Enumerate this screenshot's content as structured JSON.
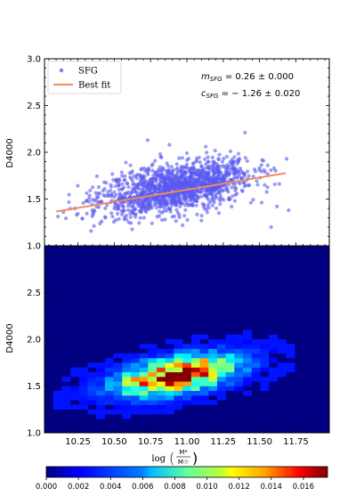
{
  "chart_data": [
    {
      "type": "scatter",
      "ylabel": "D4000",
      "xlim": [
        10.02,
        11.98
      ],
      "ylim": [
        1.0,
        3.0
      ],
      "yticks": [
        "1.0",
        "1.5",
        "2.0",
        "2.5",
        "3.0"
      ],
      "legend": {
        "placement": "top-left",
        "entries": [
          {
            "label": "SFG",
            "kind": "marker",
            "color": "#5a5af2"
          },
          {
            "label": "Best fit",
            "kind": "line",
            "color": "#f08a5d"
          }
        ]
      },
      "annotations": {
        "m_line": "m_{SFG} = 0.26 ± 0.000",
        "c_line": "c_{SFG} = −1.26 ± 0.020"
      },
      "fit": {
        "slope": 0.26,
        "intercept": -1.26,
        "x_range": [
          10.1,
          11.68
        ]
      },
      "series_note_points": [
        [
          10.15,
          1.36
        ],
        [
          10.23,
          1.4
        ],
        [
          10.28,
          1.29
        ],
        [
          10.31,
          1.48
        ],
        [
          10.36,
          1.38
        ],
        [
          10.4,
          1.56
        ],
        [
          10.44,
          1.3
        ],
        [
          10.48,
          1.63
        ],
        [
          10.52,
          1.7
        ],
        [
          10.55,
          1.44
        ],
        [
          10.58,
          1.89
        ],
        [
          10.6,
          1.25
        ],
        [
          10.63,
          1.35
        ],
        [
          10.66,
          1.76
        ],
        [
          10.7,
          1.52
        ],
        [
          10.73,
          2.13
        ],
        [
          10.76,
          1.24
        ],
        [
          10.79,
          1.58
        ],
        [
          10.82,
          1.95
        ],
        [
          10.85,
          1.46
        ],
        [
          10.88,
          2.08
        ],
        [
          10.9,
          1.31
        ],
        [
          10.94,
          1.67
        ],
        [
          10.97,
          1.22
        ],
        [
          11.0,
          1.99
        ],
        [
          11.04,
          1.43
        ],
        [
          11.07,
          1.8
        ],
        [
          11.1,
          1.27
        ],
        [
          11.13,
          2.06
        ],
        [
          11.16,
          1.55
        ],
        [
          11.19,
          1.88
        ],
        [
          11.22,
          1.35
        ],
        [
          11.26,
          1.74
        ],
        [
          11.3,
          2.01
        ],
        [
          11.33,
          1.48
        ],
        [
          11.36,
          1.93
        ],
        [
          11.4,
          2.21
        ],
        [
          11.44,
          1.46
        ],
        [
          11.5,
          1.81
        ],
        [
          11.58,
          1.2
        ],
        [
          11.62,
          1.42
        ],
        [
          11.7,
          1.38
        ]
      ]
    },
    {
      "type": "heatmap",
      "ylabel": "D4000",
      "xlabel": "log (M* / M☉)",
      "xlabel_main": "log",
      "xlabel_num": "M*",
      "xlabel_den": "M☉",
      "xlim": [
        10.02,
        11.98
      ],
      "ylim": [
        1.0,
        3.0
      ],
      "xticks": [
        "10.25",
        "10.50",
        "10.75",
        "11.00",
        "11.25",
        "11.50",
        "11.75"
      ],
      "yticks": [
        "1.0",
        "1.5",
        "2.0",
        "2.5"
      ],
      "colorbar": {
        "ticks": [
          "0.000",
          "0.002",
          "0.004",
          "0.006",
          "0.008",
          "0.010",
          "0.012",
          "0.014",
          "0.016"
        ],
        "range": [
          0,
          0.0175
        ],
        "colormap": "jet"
      },
      "peak": {
        "x": 10.93,
        "y": 1.52
      },
      "bins": {
        "nx": 33,
        "ny": 40
      }
    }
  ]
}
